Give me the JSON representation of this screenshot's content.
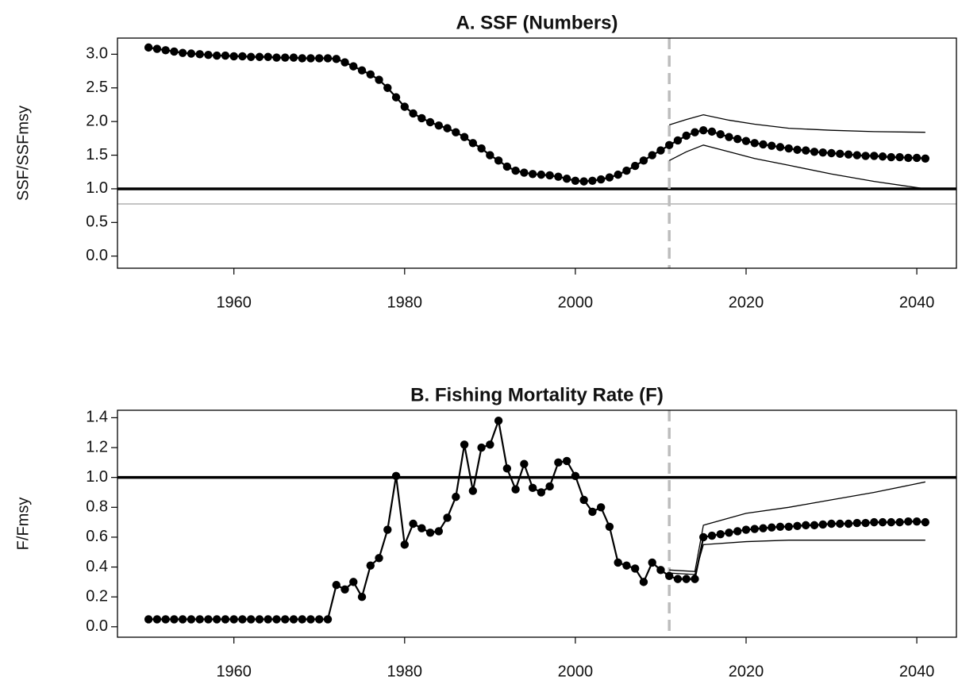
{
  "chart_data": [
    {
      "type": "line",
      "title": "A.  SSF (Numbers)",
      "ylabel": "SSF/SSFmsy",
      "color": "#000000",
      "x": [
        1950,
        1951,
        1952,
        1953,
        1954,
        1955,
        1956,
        1957,
        1958,
        1959,
        1960,
        1961,
        1962,
        1963,
        1964,
        1965,
        1966,
        1967,
        1968,
        1969,
        1970,
        1971,
        1972,
        1973,
        1974,
        1975,
        1976,
        1977,
        1978,
        1979,
        1980,
        1981,
        1982,
        1983,
        1984,
        1985,
        1986,
        1987,
        1988,
        1989,
        1990,
        1991,
        1992,
        1993,
        1994,
        1995,
        1996,
        1997,
        1998,
        1999,
        2000,
        2001,
        2002,
        2003,
        2004,
        2005,
        2006,
        2007,
        2008,
        2009,
        2010,
        2011,
        2012,
        2013,
        2014,
        2015,
        2016,
        2017,
        2018,
        2019,
        2020,
        2021,
        2022,
        2023,
        2024,
        2025,
        2026,
        2027,
        2028,
        2029,
        2030,
        2031,
        2032,
        2033,
        2034,
        2035,
        2036,
        2037,
        2038,
        2039,
        2040,
        2041
      ],
      "values": [
        3.1,
        3.08,
        3.06,
        3.04,
        3.02,
        3.01,
        3.0,
        2.99,
        2.98,
        2.98,
        2.97,
        2.97,
        2.96,
        2.96,
        2.96,
        2.95,
        2.95,
        2.95,
        2.94,
        2.94,
        2.94,
        2.94,
        2.93,
        2.88,
        2.82,
        2.76,
        2.7,
        2.62,
        2.5,
        2.36,
        2.22,
        2.12,
        2.05,
        1.99,
        1.94,
        1.9,
        1.84,
        1.77,
        1.68,
        1.6,
        1.5,
        1.42,
        1.33,
        1.27,
        1.24,
        1.22,
        1.21,
        1.2,
        1.18,
        1.15,
        1.12,
        1.11,
        1.12,
        1.14,
        1.17,
        1.21,
        1.27,
        1.34,
        1.42,
        1.5,
        1.57,
        1.65,
        1.72,
        1.79,
        1.84,
        1.87,
        1.85,
        1.81,
        1.77,
        1.74,
        1.71,
        1.68,
        1.66,
        1.64,
        1.62,
        1.6,
        1.58,
        1.57,
        1.55,
        1.54,
        1.53,
        1.52,
        1.51,
        1.5,
        1.49,
        1.49,
        1.48,
        1.47,
        1.47,
        1.46,
        1.46,
        1.45
      ],
      "band_x": [
        2011,
        2013,
        2015,
        2018,
        2021,
        2025,
        2030,
        2035,
        2041
      ],
      "band_upper": [
        1.95,
        2.03,
        2.1,
        2.02,
        1.96,
        1.9,
        1.87,
        1.85,
        1.84
      ],
      "band_lower": [
        1.42,
        1.55,
        1.65,
        1.55,
        1.45,
        1.35,
        1.22,
        1.11,
        1.0
      ],
      "ref_lines": [
        {
          "value": 1.0,
          "color": "#000000",
          "width": 3.5
        },
        {
          "value": 0.775,
          "color": "#a0a0a0",
          "width": 1.2
        }
      ],
      "vline": 2011,
      "vline_color": "#bdbdbd",
      "xlim": [
        1946.36,
        2044.64
      ],
      "ylim": [
        -0.18,
        3.24
      ],
      "xticks": [
        1960,
        1980,
        2000,
        2020,
        2040
      ],
      "yticks": [
        {
          "value": 0,
          "label": "0.0"
        },
        0.5,
        {
          "value": 1,
          "label": "1.0"
        },
        1.5,
        {
          "value": 2,
          "label": "2.0"
        },
        2.5,
        {
          "value": 3,
          "label": "3.0"
        }
      ]
    },
    {
      "type": "line",
      "title": "B.  Fishing Mortality Rate (F)",
      "ylabel": "F/Fmsy",
      "color": "#000000",
      "x": [
        1950,
        1951,
        1952,
        1953,
        1954,
        1955,
        1956,
        1957,
        1958,
        1959,
        1960,
        1961,
        1962,
        1963,
        1964,
        1965,
        1966,
        1967,
        1968,
        1969,
        1970,
        1971,
        1972,
        1973,
        1974,
        1975,
        1976,
        1977,
        1978,
        1979,
        1980,
        1981,
        1982,
        1983,
        1984,
        1985,
        1986,
        1987,
        1988,
        1989,
        1990,
        1991,
        1992,
        1993,
        1994,
        1995,
        1996,
        1997,
        1998,
        1999,
        2000,
        2001,
        2002,
        2003,
        2004,
        2005,
        2006,
        2007,
        2008,
        2009,
        2010,
        2011,
        2012,
        2013,
        2014,
        2015,
        2016,
        2017,
        2018,
        2019,
        2020,
        2021,
        2022,
        2023,
        2024,
        2025,
        2026,
        2027,
        2028,
        2029,
        2030,
        2031,
        2032,
        2033,
        2034,
        2035,
        2036,
        2037,
        2038,
        2039,
        2040,
        2041
      ],
      "values": [
        0.05,
        0.05,
        0.05,
        0.05,
        0.05,
        0.05,
        0.05,
        0.05,
        0.05,
        0.05,
        0.05,
        0.05,
        0.05,
        0.05,
        0.05,
        0.05,
        0.05,
        0.05,
        0.05,
        0.05,
        0.05,
        0.05,
        0.28,
        0.25,
        0.3,
        0.2,
        0.41,
        0.46,
        0.65,
        1.01,
        0.55,
        0.69,
        0.66,
        0.63,
        0.64,
        0.73,
        0.87,
        1.22,
        0.91,
        1.2,
        1.22,
        1.38,
        1.06,
        0.92,
        1.09,
        0.93,
        0.9,
        0.94,
        1.1,
        1.11,
        1.01,
        0.85,
        0.77,
        0.8,
        0.67,
        0.43,
        0.41,
        0.39,
        0.3,
        0.43,
        0.38,
        0.34,
        0.32,
        0.32,
        0.32,
        0.6,
        0.61,
        0.62,
        0.63,
        0.64,
        0.65,
        0.655,
        0.66,
        0.665,
        0.67,
        0.67,
        0.675,
        0.68,
        0.68,
        0.685,
        0.69,
        0.69,
        0.69,
        0.695,
        0.695,
        0.7,
        0.7,
        0.7,
        0.7,
        0.705,
        0.705,
        0.7
      ],
      "band_x": [
        2011,
        2014,
        2015,
        2020,
        2025,
        2030,
        2035,
        2041
      ],
      "band_upper": [
        0.38,
        0.37,
        0.68,
        0.76,
        0.8,
        0.85,
        0.9,
        0.97
      ],
      "band_lower": [
        0.36,
        0.35,
        0.55,
        0.57,
        0.58,
        0.58,
        0.58,
        0.58
      ],
      "ref_lines": [
        {
          "value": 1.0,
          "color": "#000000",
          "width": 3.5
        }
      ],
      "vline": 2011,
      "vline_color": "#bdbdbd",
      "xlim": [
        1946.36,
        2044.64
      ],
      "ylim": [
        -0.07,
        1.45
      ],
      "xticks": [
        1960,
        1980,
        2000,
        2020,
        2040
      ],
      "yticks": [
        {
          "value": 0,
          "label": "0.0"
        },
        0.2,
        0.4,
        0.6,
        0.8,
        {
          "value": 1,
          "label": "1.0"
        },
        1.2,
        1.4
      ]
    }
  ]
}
